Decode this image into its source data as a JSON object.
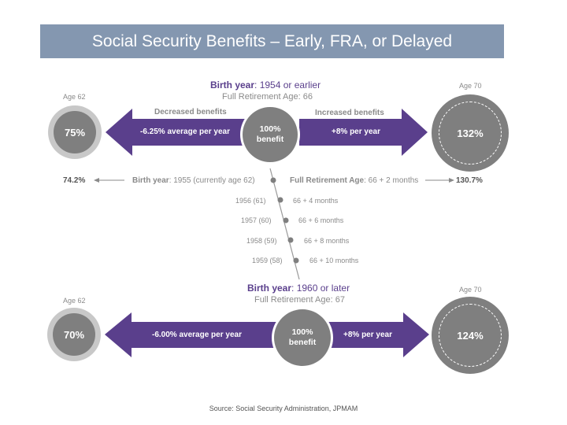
{
  "title": "Social Security Benefits – Early, FRA, or Delayed",
  "top": {
    "birth_year_label": "Birth year",
    "birth_year_value": ": 1954 or earlier",
    "fra": "Full Retirement Age: 66",
    "age_left": "Age 62",
    "age_right": "Age 70",
    "decreased_label": "Decreased benefits",
    "increased_label": "Increased benefits",
    "left_pct": "75%",
    "right_pct": "132%",
    "left_rate": "-6.25% average per year",
    "right_rate": "+8% per year",
    "center_pct": "100%",
    "center_word": "benefit"
  },
  "transition": {
    "left_value": "74.2%",
    "right_value": "130.7%",
    "first_row_left_bold": "Birth year",
    "first_row_left_rest": ": 1955 (currently age 62)",
    "first_row_right_bold": "Full Retirement Age",
    "first_row_right_rest": ": 66 + 2 months",
    "rows": [
      {
        "left": "1956 (61)",
        "right": "66 + 4 months"
      },
      {
        "left": "1957 (60)",
        "right": "66 + 6 months"
      },
      {
        "left": "1958 (59)",
        "right": "66 + 8 months"
      },
      {
        "left": "1959 (58)",
        "right": "66 + 10 months"
      }
    ]
  },
  "bottom": {
    "birth_year_label": "Birth year",
    "birth_year_value": ": 1960 or later",
    "fra": "Full Retirement Age: 67",
    "age_left": "Age 62",
    "age_right": "Age 70",
    "left_pct": "70%",
    "right_pct": "124%",
    "left_rate": "-6.00% average per year",
    "right_rate": "+8% per year",
    "center_pct": "100%",
    "center_word": "benefit"
  },
  "source": "Source: Social Security Administration, JPMAM",
  "colors": {
    "title_bg": "#8497b0",
    "purple": "#5a3f8c",
    "circle_gray": "#7f7f7f",
    "ring_gray": "#c8c8c8"
  }
}
